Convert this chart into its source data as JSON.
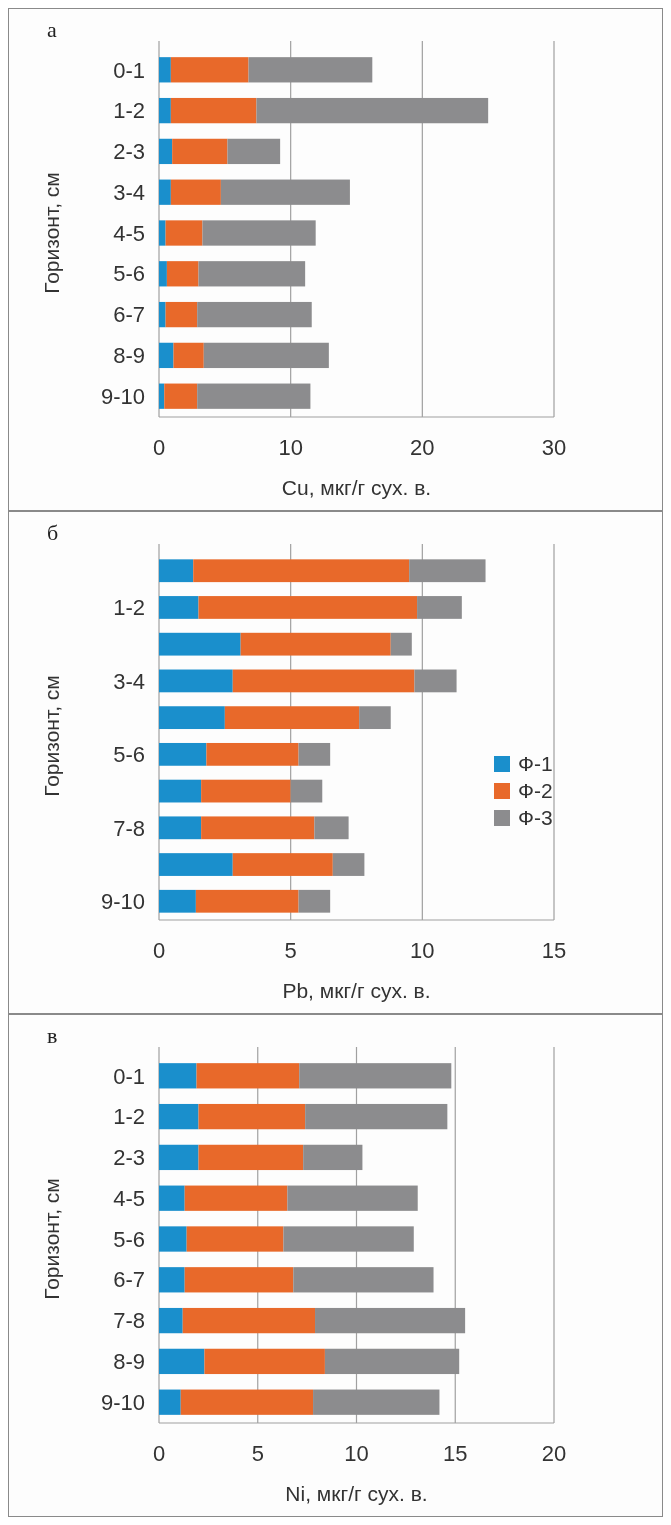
{
  "chart_data": [
    {
      "type": "bar",
      "title": "а",
      "orientation": "horizontal",
      "stacked": true,
      "categories": [
        "0-1",
        "1-2",
        "2-3",
        "3-4",
        "4-5",
        "5-6",
        "6-7",
        "8-9",
        "9-10"
      ],
      "xlabel": "Cu, мкг/г сух. в.",
      "ylabel": "Горизонт, см",
      "xlim": [
        0,
        30
      ],
      "xticks": [
        0,
        10,
        20,
        30
      ],
      "grid": "x",
      "legend": false,
      "series": [
        {
          "color": "#1a8fcc",
          "values": [
            0.9,
            0.9,
            1.0,
            0.9,
            0.5,
            0.6,
            0.5,
            1.1,
            0.4
          ]
        },
        {
          "color": "#e8692a",
          "values": [
            5.9,
            6.5,
            4.2,
            3.8,
            2.8,
            2.4,
            2.4,
            2.3,
            2.5
          ]
        },
        {
          "color": "#8c8c8e",
          "values": [
            9.4,
            17.6,
            4.0,
            9.8,
            8.6,
            8.1,
            8.7,
            9.5,
            8.6
          ]
        }
      ]
    },
    {
      "type": "bar",
      "title": "б",
      "orientation": "horizontal",
      "stacked": true,
      "categories": [
        null,
        "1-2",
        null,
        "3-4",
        null,
        "5-6",
        null,
        "7-8",
        null,
        "9-10"
      ],
      "xlabel": "Pb, мкг/г сух. в.",
      "ylabel": "Горизонт, см",
      "xlim": [
        0,
        15
      ],
      "xticks": [
        0,
        5,
        10,
        15
      ],
      "grid": "x",
      "legend": "right",
      "series": [
        {
          "name": "Ф-1",
          "color": "#1a8fcc",
          "values": [
            1.3,
            1.5,
            3.1,
            2.8,
            2.5,
            1.8,
            1.6,
            1.6,
            2.8,
            1.4
          ]
        },
        {
          "name": "Ф-2",
          "color": "#e8692a",
          "values": [
            8.2,
            8.3,
            5.7,
            6.9,
            5.1,
            3.5,
            3.4,
            4.3,
            3.8,
            3.9
          ]
        },
        {
          "name": "Ф-3",
          "color": "#8c8c8e",
          "values": [
            2.9,
            1.7,
            0.8,
            1.6,
            1.2,
            1.2,
            1.2,
            1.3,
            1.2,
            1.2
          ]
        }
      ]
    },
    {
      "type": "bar",
      "title": "в",
      "orientation": "horizontal",
      "stacked": true,
      "categories": [
        "0-1",
        "1-2",
        "2-3",
        "4-5",
        "5-6",
        "6-7",
        "7-8",
        "8-9",
        "9-10"
      ],
      "xlabel": "Ni, мкг/г сух. в.",
      "ylabel": "Горизонт, см",
      "xlim": [
        0,
        20
      ],
      "xticks": [
        0,
        5,
        10,
        15,
        20
      ],
      "grid": "x",
      "legend": false,
      "series": [
        {
          "color": "#1a8fcc",
          "values": [
            1.9,
            2.0,
            2.0,
            1.3,
            1.4,
            1.3,
            1.2,
            2.3,
            1.1
          ]
        },
        {
          "color": "#e8692a",
          "values": [
            5.2,
            5.4,
            5.3,
            5.2,
            4.9,
            5.5,
            6.7,
            6.1,
            6.7
          ]
        },
        {
          "color": "#8c8c8e",
          "values": [
            7.7,
            7.2,
            3.0,
            6.6,
            6.6,
            7.1,
            7.6,
            6.8,
            6.4
          ]
        }
      ]
    }
  ]
}
